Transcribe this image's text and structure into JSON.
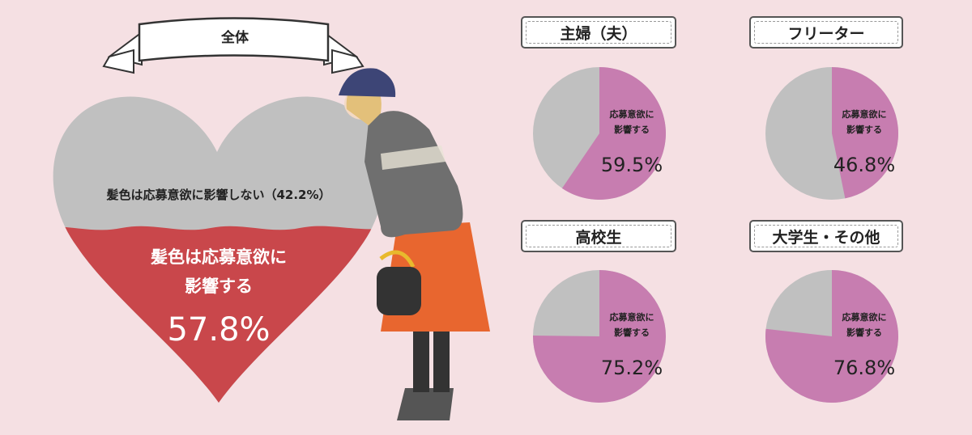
{
  "chart_data": [
    {
      "type": "pie",
      "title": "全体",
      "categories": [
        "髪色は応募意欲に影響する",
        "髪色は応募意欲に影響しない"
      ],
      "values": [
        57.8,
        42.2
      ],
      "labels": {
        "yes_line1": "髪色は応募意欲に",
        "yes_line2": "影響する",
        "yes_value": "57.8%",
        "no_label": "髪色は応募意欲に影響しない（42.2%）"
      },
      "colors": [
        "#c9474b",
        "#c0c0c0"
      ]
    },
    {
      "type": "pie",
      "title": "主婦（夫）",
      "values": [
        59.5,
        40.5
      ],
      "label_line1": "応募意欲に",
      "label_line2": "影響する",
      "value_text": "59.5%",
      "colors": [
        "#c77db0",
        "#c0c0c0"
      ]
    },
    {
      "type": "pie",
      "title": "フリーター",
      "values": [
        46.8,
        53.2
      ],
      "label_line1": "応募意欲に",
      "label_line2": "影響する",
      "value_text": "46.8%",
      "colors": [
        "#c77db0",
        "#c0c0c0"
      ]
    },
    {
      "type": "pie",
      "title": "高校生",
      "values": [
        75.2,
        24.8
      ],
      "label_line1": "応募意欲に",
      "label_line2": "影響する",
      "value_text": "75.2%",
      "colors": [
        "#c77db0",
        "#c0c0c0"
      ]
    },
    {
      "type": "pie",
      "title": "大学生・その他",
      "values": [
        76.8,
        23.2
      ],
      "label_line1": "応募意欲に",
      "label_line2": "影響する",
      "value_text": "76.8%",
      "colors": [
        "#c77db0",
        "#c0c0c0"
      ]
    }
  ]
}
